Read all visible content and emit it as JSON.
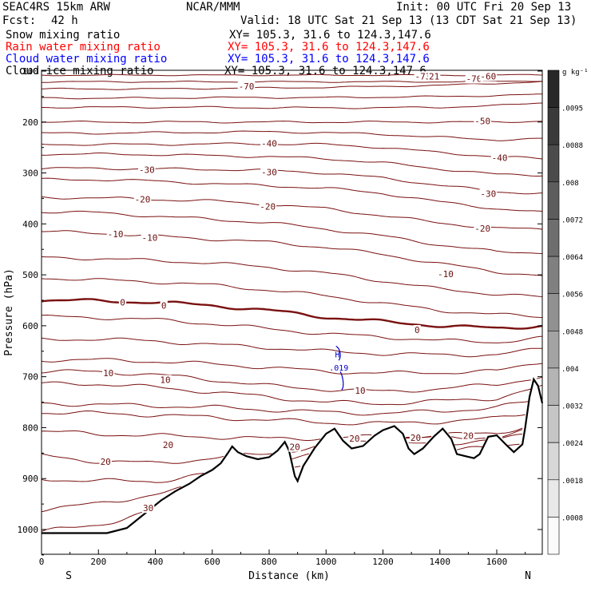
{
  "header": {
    "model": "SEAC4RS 15km ARW",
    "center": "NCAR/MMM",
    "init": "Init: 00 UTC Fri 20 Sep 13",
    "fcst_label": "Fcst:",
    "fcst_value": "42 h",
    "valid": "Valid: 18 UTC Sat 21 Sep 13 (13 CDT Sat 21 Sep 13)"
  },
  "fields": [
    {
      "name": "Snow mixing ratio",
      "xy": "XY= 105.3, 31.6 to 124.3,147.6",
      "color": "#000000"
    },
    {
      "name": "Rain water mixing ratio",
      "xy": "XY= 105.3, 31.6 to 124.3,147.6",
      "color": "#ff0000"
    },
    {
      "name": "Cloud water mixing ratio",
      "xy": "XY= 105.3, 31.6 to 124.3,147.6",
      "color": "#0000ff"
    },
    {
      "name": "Cloud ice mixing ratio",
      "xy": "XY= 105.3, 31.6 to 124.3,147.6",
      "color": "#000000"
    }
  ],
  "chart_data": {
    "type": "contour",
    "xlabel": "Distance (km)",
    "ylabel": "Pressure (hPa)",
    "xlim": [
      0,
      1760
    ],
    "ylim": [
      1050,
      100
    ],
    "x_ticks": [
      0,
      200,
      400,
      600,
      800,
      1000,
      1200,
      1400,
      1600
    ],
    "y_ticks": [
      100,
      200,
      300,
      400,
      500,
      600,
      700,
      800,
      900,
      1000
    ],
    "y_tick_labels": [
      "100",
      "200",
      "300",
      "400",
      "500",
      "600",
      "700",
      "800",
      "900",
      "1000"
    ],
    "x_end_labels": {
      "left": "S",
      "right": "N"
    },
    "colorbar": {
      "units": "g kg⁻¹",
      "labels": [
        ".0095",
        ".0088",
        ".008",
        ".0072",
        ".0064",
        ".0056",
        ".0048",
        ".004",
        ".0032",
        ".0024",
        ".0018",
        ".0008"
      ]
    },
    "contour_labels": [
      {
        "text": "-73",
        "x": 1340,
        "p": 110
      },
      {
        "text": "21",
        "x": 1380,
        "p": 110
      },
      {
        "text": "-70",
        "x": 1520,
        "p": 115
      },
      {
        "text": "-70",
        "x": 720,
        "p": 130
      },
      {
        "text": "-60",
        "x": 1570,
        "p": 110
      },
      {
        "text": "-50",
        "x": 1550,
        "p": 198
      },
      {
        "text": "-40",
        "x": 800,
        "p": 242
      },
      {
        "text": "-40",
        "x": 1610,
        "p": 270
      },
      {
        "text": "-30",
        "x": 370,
        "p": 294
      },
      {
        "text": "-30",
        "x": 800,
        "p": 298
      },
      {
        "text": "-30",
        "x": 1570,
        "p": 341
      },
      {
        "text": "-20",
        "x": 355,
        "p": 352
      },
      {
        "text": "-20",
        "x": 795,
        "p": 366
      },
      {
        "text": "-20",
        "x": 1550,
        "p": 409
      },
      {
        "text": "-10",
        "x": 260,
        "p": 420
      },
      {
        "text": "-10",
        "x": 380,
        "p": 427
      },
      {
        "text": "-10",
        "x": 1420,
        "p": 498
      },
      {
        "text": "0",
        "x": 285,
        "p": 554
      },
      {
        "text": "0",
        "x": 430,
        "p": 560
      },
      {
        "text": "0",
        "x": 1320,
        "p": 608
      },
      {
        "text": "10",
        "x": 235,
        "p": 693
      },
      {
        "text": "10",
        "x": 435,
        "p": 706
      },
      {
        "text": "10",
        "x": 1120,
        "p": 727
      },
      {
        "text": "20",
        "x": 445,
        "p": 834
      },
      {
        "text": "20",
        "x": 225,
        "p": 867
      },
      {
        "text": "20",
        "x": 890,
        "p": 838
      },
      {
        "text": "20",
        "x": 1100,
        "p": 821
      },
      {
        "text": "20",
        "x": 1315,
        "p": 820
      },
      {
        "text": "20",
        "x": 1500,
        "p": 816
      },
      {
        "text": "30",
        "x": 375,
        "p": 958
      }
    ],
    "cloud_water_labels": [
      {
        "text": "H",
        "x": 1040,
        "p": 656
      },
      {
        "text": ".019",
        "x": 1045,
        "p": 682
      }
    ],
    "terrain_profile": [
      [
        0,
        1007
      ],
      [
        230,
        1007
      ],
      [
        300,
        997
      ],
      [
        360,
        970
      ],
      [
        420,
        943
      ],
      [
        470,
        925
      ],
      [
        520,
        910
      ],
      [
        560,
        895
      ],
      [
        600,
        883
      ],
      [
        630,
        870
      ],
      [
        655,
        850
      ],
      [
        670,
        837
      ],
      [
        690,
        848
      ],
      [
        720,
        856
      ],
      [
        760,
        862
      ],
      [
        800,
        858
      ],
      [
        830,
        845
      ],
      [
        855,
        828
      ],
      [
        870,
        845
      ],
      [
        890,
        895
      ],
      [
        900,
        905
      ],
      [
        920,
        875
      ],
      [
        960,
        840
      ],
      [
        1000,
        812
      ],
      [
        1030,
        802
      ],
      [
        1060,
        826
      ],
      [
        1090,
        841
      ],
      [
        1130,
        836
      ],
      [
        1170,
        816
      ],
      [
        1200,
        805
      ],
      [
        1240,
        797
      ],
      [
        1270,
        812
      ],
      [
        1290,
        841
      ],
      [
        1310,
        852
      ],
      [
        1340,
        841
      ],
      [
        1380,
        817
      ],
      [
        1410,
        802
      ],
      [
        1440,
        822
      ],
      [
        1460,
        852
      ],
      [
        1490,
        856
      ],
      [
        1520,
        860
      ],
      [
        1540,
        852
      ],
      [
        1570,
        818
      ],
      [
        1600,
        815
      ],
      [
        1630,
        832
      ],
      [
        1660,
        848
      ],
      [
        1690,
        833
      ],
      [
        1700,
        800
      ],
      [
        1715,
        740
      ],
      [
        1730,
        705
      ],
      [
        1745,
        718
      ],
      [
        1760,
        752
      ]
    ]
  }
}
